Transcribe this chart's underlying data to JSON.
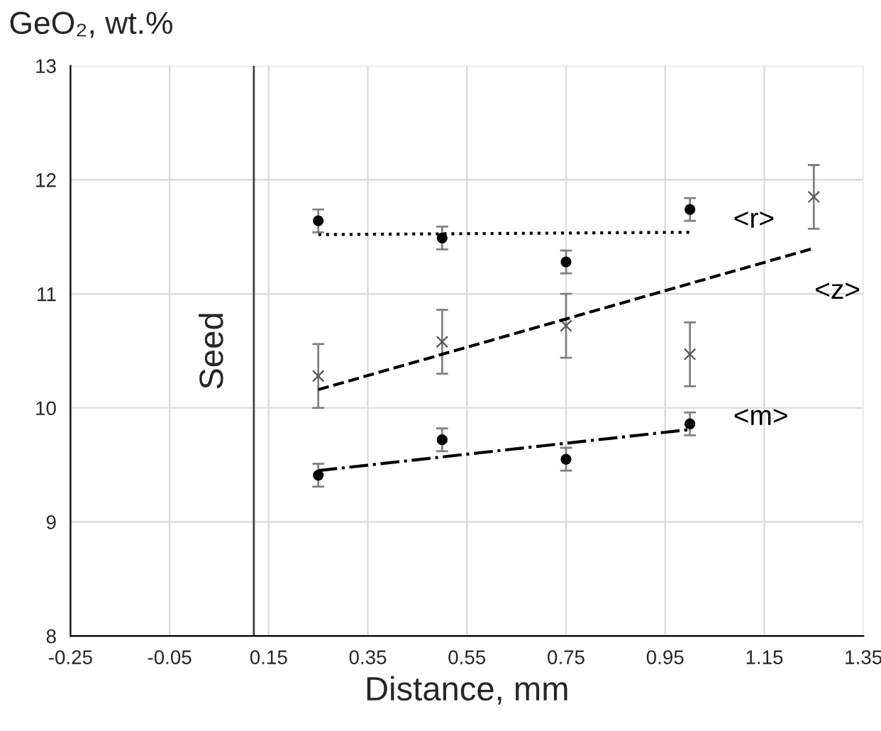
{
  "chart_data": {
    "type": "scatter",
    "ylabel": "GeO₂, wt.%",
    "xlabel": "Distance, mm",
    "xlim": [
      -0.25,
      1.35
    ],
    "xticks": [
      -0.25,
      -0.05,
      0.15,
      0.35,
      0.55,
      0.75,
      0.95,
      1.15,
      1.35
    ],
    "ylim": [
      8,
      13
    ],
    "yticks": [
      8,
      9,
      10,
      11,
      12,
      13
    ],
    "grid": true,
    "legend": false,
    "series": [
      {
        "color": "#000000",
        "marker": "circle",
        "x": [
          0.25,
          0.5,
          0.75,
          1.0
        ],
        "values": [
          11.64,
          11.49,
          11.28,
          11.74
        ],
        "errors": [
          0.1,
          0.1,
          0.1,
          0.1
        ]
      },
      {
        "color": "#555555",
        "marker": "cross",
        "x": [
          0.25,
          0.5,
          0.75,
          1.0,
          1.25
        ],
        "values": [
          10.28,
          10.58,
          10.72,
          10.47,
          11.85
        ],
        "errors": [
          0.28,
          0.28,
          0.28,
          0.28,
          0.28
        ]
      },
      {
        "color": "#000000",
        "marker": "circle",
        "x": [
          0.25,
          0.5,
          0.75,
          1.0
        ],
        "values": [
          9.41,
          9.72,
          9.55,
          9.86
        ],
        "errors": [
          0.1,
          0.1,
          0.1,
          0.1
        ]
      },
      {
        "type": "line",
        "name": "<r>",
        "color": "#000000",
        "line_style": "dotted",
        "marker": "none",
        "x": [
          0.25,
          1.0
        ],
        "values": [
          11.52,
          11.54
        ]
      },
      {
        "type": "line",
        "name": "<z>",
        "color": "#000000",
        "line_style": "dashed",
        "marker": "none",
        "x": [
          0.25,
          1.25
        ],
        "values": [
          10.16,
          11.4
        ]
      },
      {
        "type": "line",
        "name": "<m>",
        "color": "#000000",
        "line_style": "dashdot",
        "marker": "none",
        "x": [
          0.25,
          1.0
        ],
        "values": [
          9.45,
          9.81
        ]
      }
    ],
    "ref_lines": [
      {
        "axis": "x",
        "value": 0.12,
        "label": "Seed",
        "color": "#404040"
      }
    ]
  }
}
